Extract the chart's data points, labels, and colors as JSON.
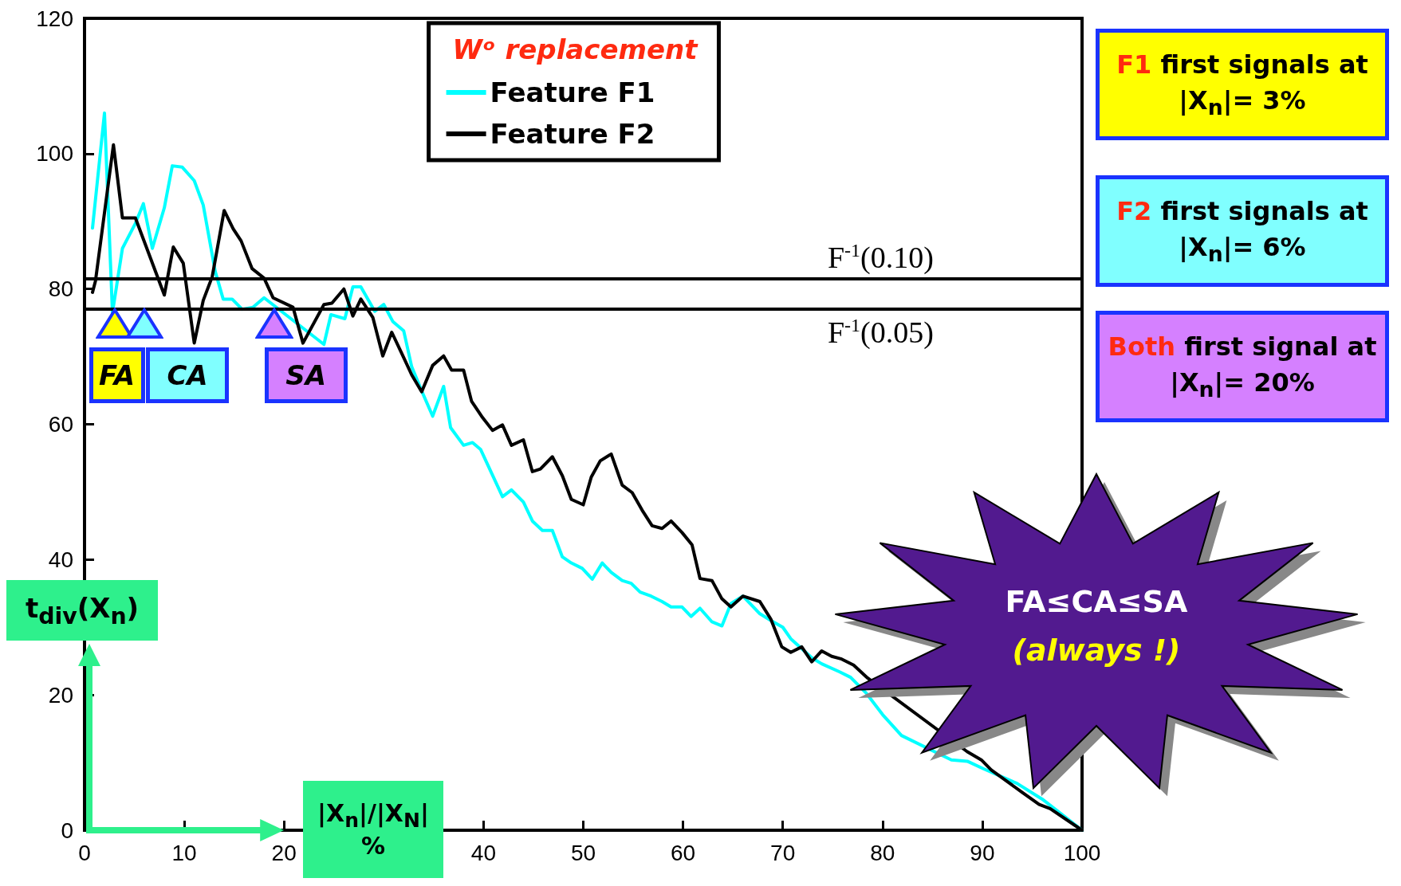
{
  "chart_data": {
    "type": "line",
    "xlabel": "|X$_{n}$|/|X$_{N}$| %",
    "ylabel": "t$_{div}$(X$_{n}$)",
    "legend_title": "Wᵒ replacement",
    "xlim": [
      0,
      100
    ],
    "xticks": [
      0,
      10,
      20,
      {
        "value": 30,
        "label": null
      },
      40,
      50,
      60,
      70,
      80,
      90,
      100
    ],
    "ylim": [
      0,
      120
    ],
    "yticks": [
      0,
      20,
      40,
      60,
      80,
      100,
      120
    ],
    "grid": false,
    "legend": "top",
    "marker": "none",
    "series": [
      {
        "name": "Feature F1",
        "color": "#00ffff",
        "x": [
          0.8,
          2,
          2.8,
          3.8,
          5.1,
          5.9,
          6.8,
          8,
          8.8,
          9.8,
          11,
          11.9,
          13.1,
          13.9,
          14.8,
          15.8,
          16.9,
          18,
          24,
          24.7,
          26.1,
          26.9,
          27.7,
          29.1,
          30,
          30.9,
          32,
          32.8,
          33.9,
          34.9,
          36,
          36.7,
          38,
          38.9,
          39.7,
          41.9,
          42.8,
          44,
          44.9,
          45.9,
          46.9,
          47.9,
          48.8,
          49.9,
          50.9,
          51.9,
          52.8,
          53.9,
          54.8,
          55.7,
          56.8,
          57.9,
          58.8,
          59.9,
          60.8,
          61.7,
          62.9,
          63.9,
          64.8,
          66,
          67.7,
          68.8,
          70,
          70.8,
          72.9,
          73.9,
          75.7,
          76.8,
          78.4,
          80,
          81.9,
          86.9,
          88.5,
          90.1,
          93.5,
          96,
          98.1,
          100
        ],
        "values": [
          89,
          106,
          76.5,
          86,
          89.7,
          92.6,
          86,
          92,
          98.2,
          98,
          96,
          92.4,
          82.6,
          78.5,
          78.5,
          77,
          77.3,
          78.7,
          71.8,
          76.2,
          75.6,
          80.3,
          80.3,
          76.7,
          77.7,
          75.2,
          73.8,
          68.5,
          64.6,
          61.2,
          65.6,
          59.5,
          56.9,
          57.3,
          56.3,
          49.3,
          50.3,
          48.5,
          45.7,
          44.3,
          44.3,
          40.4,
          39.5,
          38.7,
          37.1,
          39.5,
          38.1,
          36.9,
          36.5,
          35.2,
          34.6,
          33.8,
          33,
          33,
          31.6,
          32.8,
          30.8,
          30.2,
          33.5,
          34.6,
          32,
          31,
          30,
          28.3,
          25.5,
          24.6,
          23.4,
          22.6,
          20.2,
          17.1,
          14,
          10.4,
          10.2,
          9.1,
          6.9,
          4.6,
          2.2,
          0
        ]
      },
      {
        "name": "Feature F2",
        "color": "#000000",
        "x": [
          0.8,
          1.1,
          2.9,
          3.8,
          5.1,
          8,
          8.9,
          9.9,
          11,
          11.9,
          12.8,
          14,
          14.9,
          15.7,
          16.8,
          18,
          18.9,
          20.9,
          21.9,
          24,
          24.8,
          26,
          26.9,
          27.7,
          28.9,
          29.9,
          30.8,
          31.7,
          32.8,
          33.8,
          34.9,
          36,
          36.8,
          38,
          38.8,
          39.9,
          40.9,
          41.9,
          42.8,
          44,
          44.9,
          45.7,
          46.9,
          47.9,
          48.8,
          50,
          50.8,
          51.7,
          52.8,
          53.9,
          54.9,
          55.9,
          56.9,
          57.9,
          58.8,
          59.9,
          60.9,
          61.7,
          62.9,
          63.9,
          64.8,
          66,
          67.7,
          68.8,
          69.9,
          70.8,
          71.9,
          72.9,
          73.9,
          74.9,
          75.9,
          77.1,
          78.5,
          88.5,
          89.9,
          90.9,
          93.9,
          95.7,
          96.8,
          100
        ],
        "values": [
          79.5,
          81.2,
          101.3,
          90.5,
          90.5,
          79.1,
          86.2,
          83.8,
          72,
          78.3,
          81.8,
          91.6,
          88.9,
          87.1,
          83,
          81.6,
          78.7,
          77.3,
          72,
          77.7,
          77.9,
          80,
          76,
          78.5,
          75.8,
          70.1,
          73.6,
          70.8,
          67.3,
          64.8,
          68.7,
          70.1,
          68,
          68,
          63.4,
          61,
          59.1,
          59.9,
          56.9,
          57.7,
          53,
          53.4,
          55.2,
          52.4,
          48.9,
          48.1,
          52.2,
          54.6,
          55.6,
          51,
          49.9,
          47.3,
          45,
          44.6,
          45.7,
          44,
          42.2,
          37.2,
          36.9,
          34.2,
          33,
          34.6,
          33.8,
          31.2,
          27.1,
          26.3,
          27.1,
          24.9,
          26.5,
          25.7,
          25.3,
          24.4,
          22.5,
          11.6,
          10.4,
          8.9,
          5.7,
          3.8,
          3.2,
          0
        ]
      }
    ],
    "ref_lines": [
      {
        "axis": "y",
        "value": 81.5,
        "label": "F$^{-1}$(0.10)"
      },
      {
        "axis": "y",
        "value": 77,
        "label": "F$^{-1}$(0.05)"
      }
    ],
    "annotations": [
      {
        "text": "FA",
        "x": 3,
        "y": 77
      },
      {
        "text": "CA",
        "x": 6,
        "y": 77
      },
      {
        "text": "SA",
        "x": 19,
        "y": 77
      },
      "F1 first signals at |X$_{n}$|= 3%",
      "F2 first signals at |X$_{n}$|= 6%",
      "Both first signal at |X$_{n}$|= 20%",
      "FA≤CA≤SA",
      "(always !)"
    ]
  }
}
